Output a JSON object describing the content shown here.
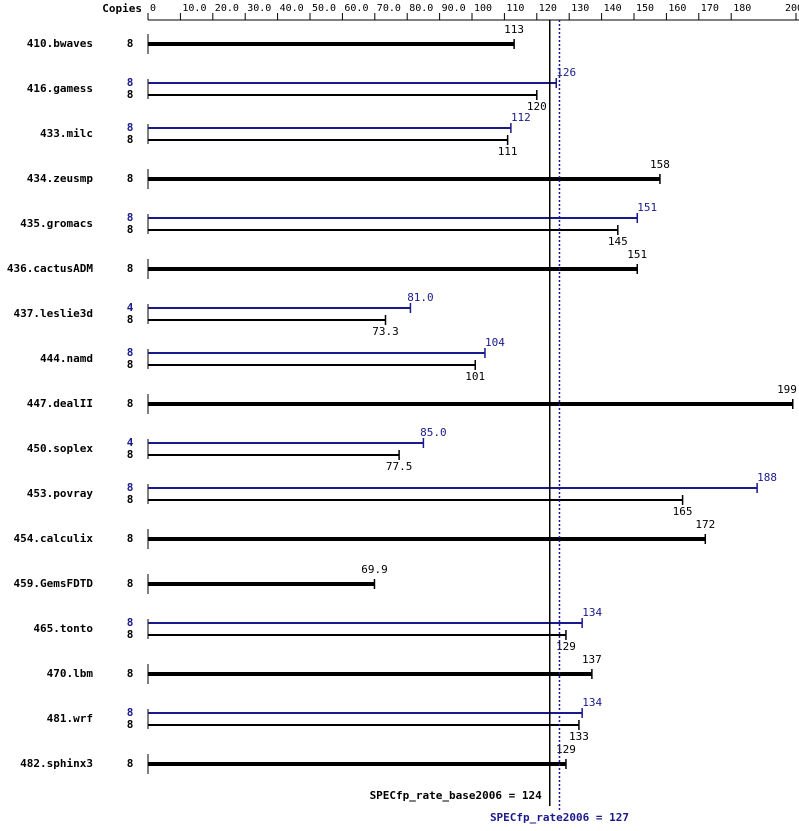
{
  "chart_data": {
    "type": "bar",
    "orientation": "horizontal",
    "copies_label": "Copies",
    "categories": [
      "410.bwaves",
      "416.gamess",
      "433.milc",
      "434.zeusmp",
      "435.gromacs",
      "436.cactusADM",
      "437.leslie3d",
      "444.namd",
      "447.dealII",
      "450.soplex",
      "453.povray",
      "454.calculix",
      "459.GemsFDTD",
      "465.tonto",
      "470.lbm",
      "481.wrf",
      "482.sphinx3"
    ],
    "series": [
      {
        "color": "#000000",
        "copies": [
          8,
          8,
          8,
          8,
          8,
          8,
          8,
          8,
          8,
          8,
          8,
          8,
          8,
          8,
          8,
          8,
          8
        ],
        "values": [
          113,
          120,
          111,
          158,
          145,
          151,
          73.3,
          101,
          199,
          77.5,
          165,
          172,
          69.9,
          129,
          137,
          133,
          129
        ]
      },
      {
        "color": "#1a1a8c",
        "copies": [
          null,
          8,
          8,
          null,
          8,
          null,
          4,
          8,
          null,
          4,
          8,
          null,
          null,
          8,
          null,
          8,
          null
        ],
        "values": [
          null,
          126,
          112,
          null,
          151,
          null,
          81,
          104,
          null,
          85,
          188,
          null,
          null,
          134,
          null,
          134,
          null
        ],
        "value_labels": [
          null,
          "126",
          "112",
          null,
          "151",
          null,
          "81.0",
          "104",
          null,
          "85.0",
          "188",
          null,
          null,
          "134",
          null,
          "134",
          null
        ]
      }
    ],
    "xlim": [
      0,
      200
    ],
    "xticks": [
      0,
      {
        "value": 10,
        "label": "10.0"
      },
      {
        "value": 20,
        "label": "20.0"
      },
      {
        "value": 30,
        "label": "30.0"
      },
      {
        "value": 40,
        "label": "40.0"
      },
      {
        "value": 50,
        "label": "50.0"
      },
      {
        "value": 60,
        "label": "60.0"
      },
      {
        "value": 70,
        "label": "70.0"
      },
      {
        "value": 80,
        "label": "80.0"
      },
      {
        "value": 90,
        "label": "90.0"
      },
      100,
      110,
      120,
      130,
      140,
      150,
      160,
      170,
      180,
      200
    ],
    "reference_lines": [
      {
        "label": "SPECfp_rate_base2006 = 124",
        "value": 124,
        "color": "#000000",
        "style": "solid"
      },
      {
        "label": "SPECfp_rate2006 = 127",
        "value": 127,
        "color": "#1a1a8c",
        "style": "dotted"
      }
    ]
  }
}
